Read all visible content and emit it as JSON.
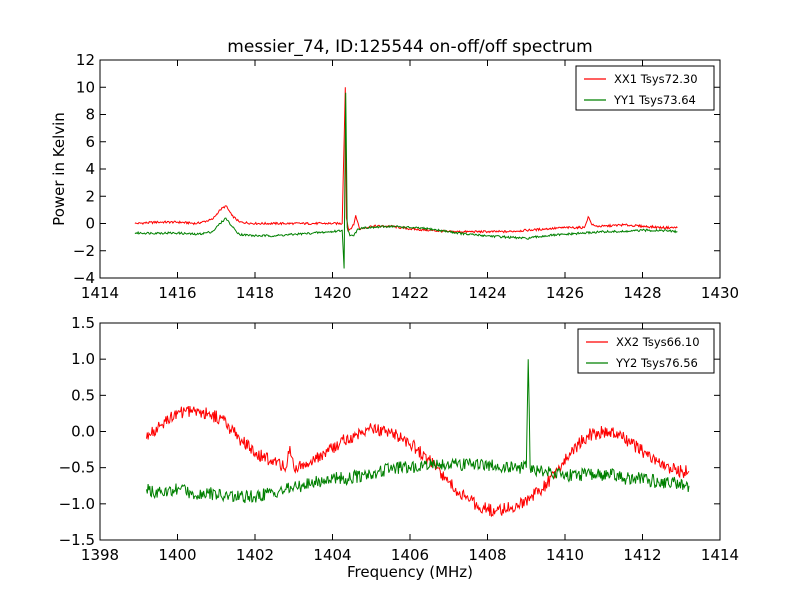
{
  "figure": {
    "title": "messier_74, ID:125544 on-off/off spectrum"
  },
  "chart_data": [
    {
      "type": "line",
      "title": "messier_74, ID:125544 on-off/off spectrum",
      "xlabel": "",
      "ylabel": "Power in Kelvin",
      "xlim": [
        1414,
        1430
      ],
      "ylim": [
        -4,
        12
      ],
      "xticks": [
        "1414",
        "1416",
        "1418",
        "1420",
        "1422",
        "1424",
        "1426",
        "1428",
        "1430"
      ],
      "yticks": [
        "−4",
        "−2",
        "0",
        "2",
        "4",
        "6",
        "8",
        "10",
        "12"
      ],
      "grid": false,
      "legend_position": "top-right",
      "series": [
        {
          "name": "XX1 Tsys72.30",
          "color": "#ff0000",
          "x": [
            1414.9,
            1415.5,
            1416.0,
            1416.5,
            1416.9,
            1417.1,
            1417.25,
            1417.4,
            1417.6,
            1418.0,
            1418.5,
            1419.0,
            1419.5,
            1420.0,
            1420.25,
            1420.33,
            1420.36,
            1420.42,
            1420.55,
            1420.6,
            1420.7,
            1421.0,
            1421.5,
            1422.0,
            1422.5,
            1423.0,
            1423.5,
            1424.0,
            1424.5,
            1425.0,
            1425.5,
            1426.0,
            1426.5,
            1426.6,
            1426.7,
            1426.8,
            1427.0,
            1427.5,
            1428.0,
            1428.5,
            1428.9
          ],
          "y": [
            0.0,
            0.1,
            0.1,
            0.0,
            0.3,
            1.0,
            1.3,
            0.6,
            0.1,
            0.0,
            0.0,
            0.0,
            0.0,
            0.0,
            0.0,
            10.0,
            0.4,
            -0.5,
            -0.1,
            0.6,
            -0.4,
            -0.2,
            -0.2,
            -0.4,
            -0.5,
            -0.6,
            -0.6,
            -0.6,
            -0.6,
            -0.5,
            -0.4,
            -0.3,
            -0.3,
            0.5,
            -0.1,
            -0.2,
            -0.2,
            -0.1,
            -0.2,
            -0.3,
            -0.3
          ]
        },
        {
          "name": "YY1 Tsys73.64",
          "color": "#008000",
          "x": [
            1414.9,
            1415.5,
            1416.0,
            1416.5,
            1416.9,
            1417.1,
            1417.25,
            1417.4,
            1417.6,
            1418.0,
            1418.5,
            1419.0,
            1419.5,
            1420.0,
            1420.25,
            1420.3,
            1420.34,
            1420.38,
            1420.45,
            1420.55,
            1420.65,
            1420.8,
            1421.0,
            1421.5,
            1422.0,
            1422.5,
            1423.0,
            1423.5,
            1424.0,
            1424.5,
            1425.0,
            1425.5,
            1426.0,
            1426.5,
            1427.0,
            1427.5,
            1428.0,
            1428.5,
            1428.9
          ],
          "y": [
            -0.7,
            -0.7,
            -0.7,
            -0.8,
            -0.6,
            0.0,
            0.4,
            -0.2,
            -0.8,
            -0.9,
            -0.9,
            -0.8,
            -0.7,
            -0.6,
            -0.5,
            -3.3,
            9.6,
            -0.3,
            -0.9,
            -0.9,
            -0.4,
            -0.3,
            -0.3,
            -0.2,
            -0.3,
            -0.4,
            -0.6,
            -0.8,
            -0.9,
            -1.0,
            -1.1,
            -0.9,
            -0.8,
            -0.7,
            -0.6,
            -0.6,
            -0.5,
            -0.5,
            -0.6
          ]
        }
      ]
    },
    {
      "type": "line",
      "title": "",
      "xlabel": "Frequency (MHz)",
      "ylabel": "",
      "xlim": [
        1398,
        1414
      ],
      "ylim": [
        -1.5,
        1.5
      ],
      "xticks": [
        "1398",
        "1400",
        "1402",
        "1404",
        "1406",
        "1408",
        "1410",
        "1412",
        "1414"
      ],
      "yticks": [
        "−1.5",
        "−1.0",
        "−0.5",
        "0.0",
        "0.5",
        "1.0",
        "1.5"
      ],
      "grid": false,
      "legend_position": "top-right",
      "series": [
        {
          "name": "XX2 Tsys66.10",
          "color": "#ff0000",
          "x": [
            1399.2,
            1399.6,
            1400.0,
            1400.4,
            1400.8,
            1401.2,
            1401.6,
            1402.0,
            1402.4,
            1402.8,
            1402.9,
            1403.0,
            1403.4,
            1403.8,
            1404.2,
            1404.6,
            1405.0,
            1405.4,
            1405.8,
            1406.2,
            1406.6,
            1407.0,
            1407.4,
            1407.8,
            1408.2,
            1408.6,
            1409.0,
            1409.4,
            1409.8,
            1410.2,
            1410.6,
            1411.0,
            1411.4,
            1411.8,
            1412.2,
            1412.6,
            1413.0,
            1413.2
          ],
          "y": [
            -0.1,
            0.1,
            0.25,
            0.3,
            0.25,
            0.15,
            -0.1,
            -0.3,
            -0.4,
            -0.5,
            -0.2,
            -0.5,
            -0.45,
            -0.3,
            -0.15,
            -0.05,
            0.05,
            0.0,
            -0.1,
            -0.25,
            -0.45,
            -0.7,
            -0.9,
            -1.05,
            -1.1,
            -1.05,
            -0.95,
            -0.8,
            -0.55,
            -0.25,
            -0.05,
            0.0,
            -0.05,
            -0.2,
            -0.35,
            -0.5,
            -0.55,
            -0.55
          ]
        },
        {
          "name": "YY2 Tsys76.56",
          "color": "#008000",
          "x": [
            1399.2,
            1399.6,
            1400.0,
            1400.4,
            1400.8,
            1401.2,
            1401.6,
            1402.0,
            1402.4,
            1402.8,
            1403.2,
            1403.6,
            1404.0,
            1404.4,
            1404.8,
            1405.2,
            1405.6,
            1406.0,
            1406.4,
            1406.8,
            1407.2,
            1407.6,
            1408.0,
            1408.4,
            1408.8,
            1409.0,
            1409.05,
            1409.1,
            1409.3,
            1409.6,
            1410.0,
            1410.4,
            1410.8,
            1411.2,
            1411.6,
            1412.0,
            1412.4,
            1412.8,
            1413.2
          ],
          "y": [
            -0.8,
            -0.85,
            -0.8,
            -0.85,
            -0.85,
            -0.9,
            -0.9,
            -0.9,
            -0.85,
            -0.8,
            -0.75,
            -0.7,
            -0.65,
            -0.65,
            -0.6,
            -0.55,
            -0.5,
            -0.5,
            -0.45,
            -0.45,
            -0.45,
            -0.45,
            -0.45,
            -0.5,
            -0.5,
            -0.5,
            1.0,
            -0.5,
            -0.55,
            -0.55,
            -0.6,
            -0.6,
            -0.6,
            -0.6,
            -0.65,
            -0.65,
            -0.7,
            -0.7,
            -0.75
          ]
        }
      ]
    }
  ]
}
